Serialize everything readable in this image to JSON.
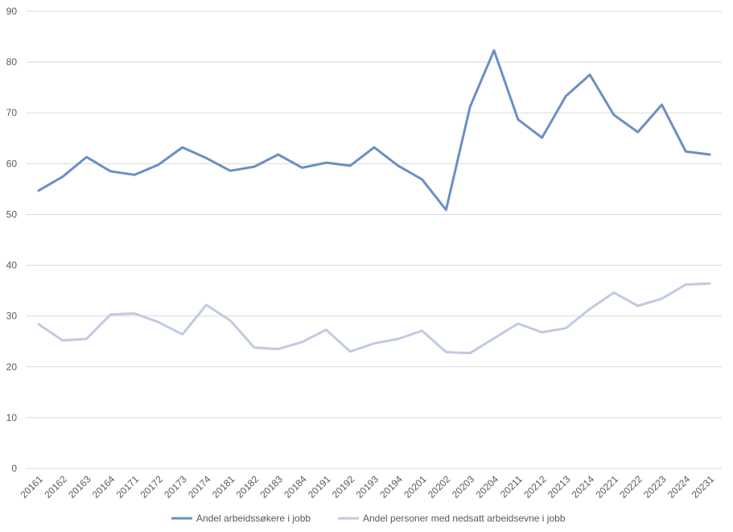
{
  "chart_data": {
    "type": "line",
    "title": "",
    "xlabel": "",
    "ylabel": "",
    "ylim": [
      0,
      90
    ],
    "yticks": [
      0,
      10,
      20,
      30,
      40,
      50,
      60,
      70,
      80,
      90
    ],
    "grid": true,
    "legend_position": "bottom",
    "categories": [
      "20161",
      "20162",
      "20163",
      "20164",
      "20171",
      "20172",
      "20173",
      "20174",
      "20181",
      "20182",
      "20183",
      "20184",
      "20191",
      "20192",
      "20193",
      "20194",
      "20201",
      "20202",
      "20203",
      "20204",
      "20211",
      "20212",
      "20213",
      "20214",
      "20221",
      "20222",
      "20223",
      "20224",
      "20231"
    ],
    "series": [
      {
        "name": "Andel arbeidssøkere i jobb",
        "color": "#6b8fc4",
        "values": [
          54.7,
          57.4,
          61.3,
          58.5,
          57.8,
          59.8,
          63.2,
          61.1,
          58.6,
          59.4,
          61.8,
          59.2,
          60.2,
          59.6,
          63.2,
          59.6,
          56.9,
          50.9,
          71.2,
          82.3,
          68.7,
          65.1,
          73.3,
          77.5,
          69.6,
          66.2,
          71.6,
          62.4,
          61.8
        ]
      },
      {
        "name": "Andel personer med nedsatt arbeidsevne i jobb",
        "color": "#c1cae2",
        "values": [
          28.4,
          25.2,
          25.5,
          30.3,
          30.5,
          28.8,
          26.4,
          32.2,
          29.1,
          23.8,
          23.5,
          24.9,
          27.3,
          23.0,
          24.6,
          25.5,
          27.1,
          22.9,
          22.7,
          25.6,
          28.5,
          26.8,
          27.6,
          31.4,
          34.6,
          32.0,
          33.4,
          36.2,
          36.4
        ]
      }
    ]
  }
}
